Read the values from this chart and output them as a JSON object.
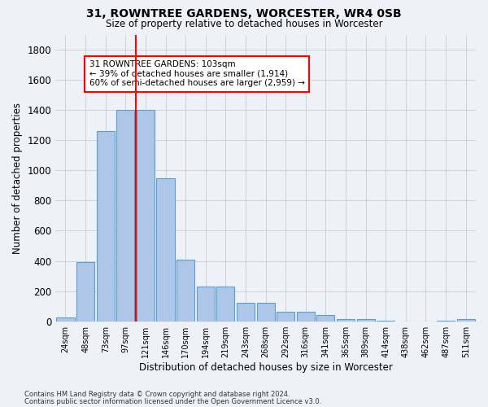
{
  "title1": "31, ROWNTREE GARDENS, WORCESTER, WR4 0SB",
  "title2": "Size of property relative to detached houses in Worcester",
  "xlabel": "Distribution of detached houses by size in Worcester",
  "ylabel": "Number of detached properties",
  "categories": [
    "24sqm",
    "48sqm",
    "73sqm",
    "97sqm",
    "121sqm",
    "146sqm",
    "170sqm",
    "194sqm",
    "219sqm",
    "243sqm",
    "268sqm",
    "292sqm",
    "316sqm",
    "341sqm",
    "365sqm",
    "389sqm",
    "414sqm",
    "438sqm",
    "462sqm",
    "487sqm",
    "511sqm"
  ],
  "values": [
    25,
    390,
    1260,
    1400,
    1400,
    950,
    410,
    230,
    230,
    120,
    120,
    65,
    65,
    40,
    15,
    15,
    5,
    0,
    0,
    5,
    15
  ],
  "bar_color": "#aec6e8",
  "bar_edge_color": "#5a9fd4",
  "vline_x_pos": 3.5,
  "vline_color": "red",
  "annotation_text": "31 ROWNTREE GARDENS: 103sqm\n← 39% of detached houses are smaller (1,914)\n60% of semi-detached houses are larger (2,959) →",
  "annotation_box_color": "white",
  "annotation_box_edge_color": "red",
  "ylim": [
    0,
    1900
  ],
  "yticks": [
    0,
    200,
    400,
    600,
    800,
    1000,
    1200,
    1400,
    1600,
    1800
  ],
  "footnote1": "Contains HM Land Registry data © Crown copyright and database right 2024.",
  "footnote2": "Contains public sector information licensed under the Open Government Licence v3.0.",
  "bg_color": "#eef2f8",
  "grid_color": "#cccccc"
}
